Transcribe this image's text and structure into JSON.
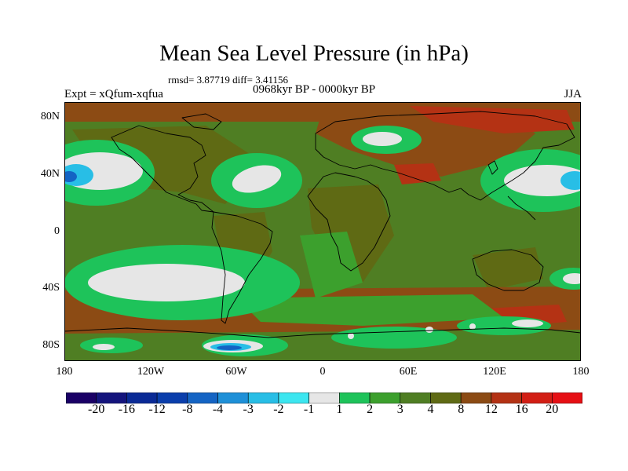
{
  "title": "Mean Sea Level Pressure (in hPa)",
  "stats": "rmsd= 3.87719 diff= 3.41156",
  "period": "0968kyr BP - 0000kyr BP",
  "expt": "Expt = xQfum-xqfua",
  "season": "JJA",
  "lat_ticks": [
    "80N",
    "40N",
    "0",
    "40S",
    "80S"
  ],
  "lon_ticks": [
    "180",
    "120W",
    "60W",
    "0",
    "60E",
    "120E",
    "180"
  ],
  "colorbar": {
    "labels": [
      "-20",
      "-16",
      "-12",
      "-8",
      "-4",
      "-3",
      "-2",
      "-1",
      "1",
      "2",
      "3",
      "4",
      "8",
      "12",
      "16",
      "20"
    ],
    "colors": [
      "#1a0066",
      "#14147d",
      "#0a2a96",
      "#0a3eac",
      "#1464c4",
      "#1e90d8",
      "#28bee6",
      "#3ce6f0",
      "#e6e6e6",
      "#1ec35a",
      "#3ca02d",
      "#4f7e23",
      "#5f6a14",
      "#8c4b14",
      "#b43214",
      "#d21e14",
      "#e60f14"
    ]
  },
  "field_colors": {
    "base": "#4f7e23",
    "land": "#5f6a14",
    "warm": "#8c4b14",
    "hot": "#b43214",
    "light": "#3ca02d",
    "green": "#1ec35a",
    "white": "#e6e6e6",
    "cyan": "#28bee6",
    "blue": "#1464c4"
  }
}
